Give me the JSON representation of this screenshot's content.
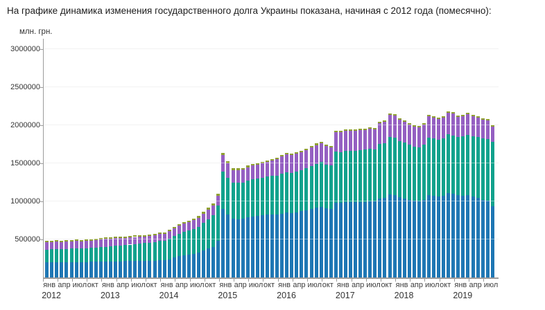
{
  "page": {
    "title": "На графике динамика изменения государственного долга Украины показана, начиная с 2012 года (помесячно):"
  },
  "chart_data": {
    "type": "bar",
    "stacked": true,
    "title": "",
    "ylabel": "млн. грн.",
    "xlabel": "",
    "grid": true,
    "legend": "none",
    "ylim": [
      0,
      3150000
    ],
    "y_ticks": [
      500000,
      1000000,
      1500000,
      2000000,
      2500000,
      3000000
    ],
    "x_quarter_labels": [
      "янв",
      "апр",
      "июл",
      "окт"
    ],
    "years": [
      "2012",
      "2013",
      "2014",
      "2015",
      "2016",
      "2017",
      "2018",
      "2019"
    ],
    "months_per_year": [
      12,
      12,
      12,
      12,
      12,
      12,
      12,
      8
    ],
    "period": "2012-01 — 2019-08",
    "colors": {
      "blue": "#1f77b4",
      "teal": "#12a28d",
      "purple": "#9560c2",
      "olive": "#90a032",
      "grid": "#e8e8e8",
      "axis": "#9b9b9b"
    },
    "series": [
      {
        "name": "blue",
        "color": "#1f77b4",
        "values": [
          196000,
          197000,
          198000,
          198000,
          199000,
          200000,
          202000,
          202000,
          203000,
          205000,
          207000,
          209000,
          210000,
          211000,
          212000,
          213000,
          214000,
          215000,
          216000,
          217000,
          218000,
          219000,
          221000,
          223000,
          225000,
          240000,
          262000,
          278000,
          290000,
          300000,
          312000,
          326000,
          352000,
          378000,
          404000,
          486000,
          900000,
          830000,
          770000,
          768000,
          770000,
          790000,
          800000,
          806000,
          815000,
          823000,
          830000,
          826000,
          840000,
          855000,
          848000,
          858000,
          870000,
          880000,
          900000,
          915000,
          925000,
          905000,
          897000,
          980000,
          978000,
          988000,
          989000,
          987000,
          993000,
          995000,
          1002000,
          998000,
          1038000,
          1047000,
          1094000,
          1080000,
          1055000,
          1040000,
          1020000,
          1005000,
          1000000,
          1020000,
          1082000,
          1072000,
          1062000,
          1072000,
          1106000,
          1099000,
          1078000,
          1072000,
          1080000,
          1060000,
          1044000,
          1020000,
          1010000,
          935000
        ]
      },
      {
        "name": "teal",
        "color": "#12a28d",
        "values": [
          172000,
          174000,
          177000,
          175000,
          177000,
          179000,
          181000,
          180000,
          182000,
          184000,
          187000,
          190000,
          193000,
          197000,
          202000,
          207000,
          212000,
          217000,
          223000,
          228000,
          233000,
          238000,
          243000,
          257000,
          261000,
          270000,
          288000,
          298000,
          308000,
          316000,
          328000,
          342000,
          362000,
          386000,
          410000,
          461000,
          490000,
          480000,
          475000,
          477000,
          478000,
          485000,
          490000,
          494000,
          498000,
          502000,
          505000,
          508000,
          520000,
          530000,
          527000,
          535000,
          543000,
          553000,
          567000,
          580000,
          590000,
          578000,
          573000,
          671000,
          670000,
          677000,
          678000,
          677000,
          681000,
          683000,
          688000,
          685000,
          713000,
          719000,
          752000,
          753000,
          740000,
          733000,
          722000,
          713000,
          710000,
          722000,
          757000,
          752000,
          746000,
          752000,
          775000,
          761000,
          770000,
          782000,
          795000,
          795000,
          800000,
          805000,
          812000,
          845000
        ]
      },
      {
        "name": "purple",
        "color": "#9560c2",
        "values": [
          93000,
          94000,
          95000,
          94000,
          94000,
          95000,
          96000,
          95000,
          96000,
          97000,
          99000,
          104000,
          103000,
          102000,
          100000,
          98000,
          96000,
          94000,
          93000,
          92000,
          90000,
          89000,
          90000,
          91000,
          91000,
          96000,
          100000,
          104000,
          108000,
          110000,
          113000,
          118000,
          125000,
          130000,
          135000,
          126000,
          220000,
          193000,
          168000,
          167000,
          168000,
          175000,
          179000,
          183000,
          188000,
          194000,
          200000,
          217000,
          230000,
          235000,
          230000,
          232000,
          235000,
          237000,
          243000,
          245000,
          248000,
          242000,
          240000,
          259000,
          258000,
          260000,
          260000,
          259000,
          261000,
          262000,
          264000,
          262000,
          273000,
          276000,
          290000,
          294000,
          278000,
          273000,
          267000,
          264000,
          262000,
          267000,
          280000,
          278000,
          276000,
          278000,
          285000,
          296000,
          263000,
          266000,
          273000,
          265000,
          258000,
          249000,
          244000,
          205000
        ]
      },
      {
        "name": "olive",
        "color": "#90a032",
        "values": [
          12000,
          12000,
          12000,
          12000,
          12000,
          12000,
          12000,
          12000,
          13000,
          13000,
          13000,
          13000,
          13000,
          13000,
          13000,
          13000,
          13000,
          13000,
          13000,
          13000,
          13000,
          13000,
          13000,
          13000,
          13000,
          14000,
          15000,
          16000,
          17000,
          18000,
          19000,
          20000,
          22000,
          24000,
          26000,
          28000,
          26000,
          23000,
          21000,
          21000,
          21000,
          21000,
          21000,
          21000,
          21000,
          21000,
          21000,
          21000,
          20000,
          20000,
          20000,
          20000,
          20000,
          20000,
          20000,
          20000,
          20000,
          20000,
          20000,
          19000,
          17000,
          17000,
          17000,
          17000,
          17000,
          16000,
          16000,
          16000,
          16000,
          16000,
          15000,
          15000,
          13000,
          13000,
          13000,
          13000,
          13000,
          13000,
          13000,
          12000,
          12000,
          12000,
          12000,
          12000,
          12000,
          12000,
          12000,
          12000,
          12000,
          12000,
          11000,
          10000
        ]
      }
    ]
  }
}
